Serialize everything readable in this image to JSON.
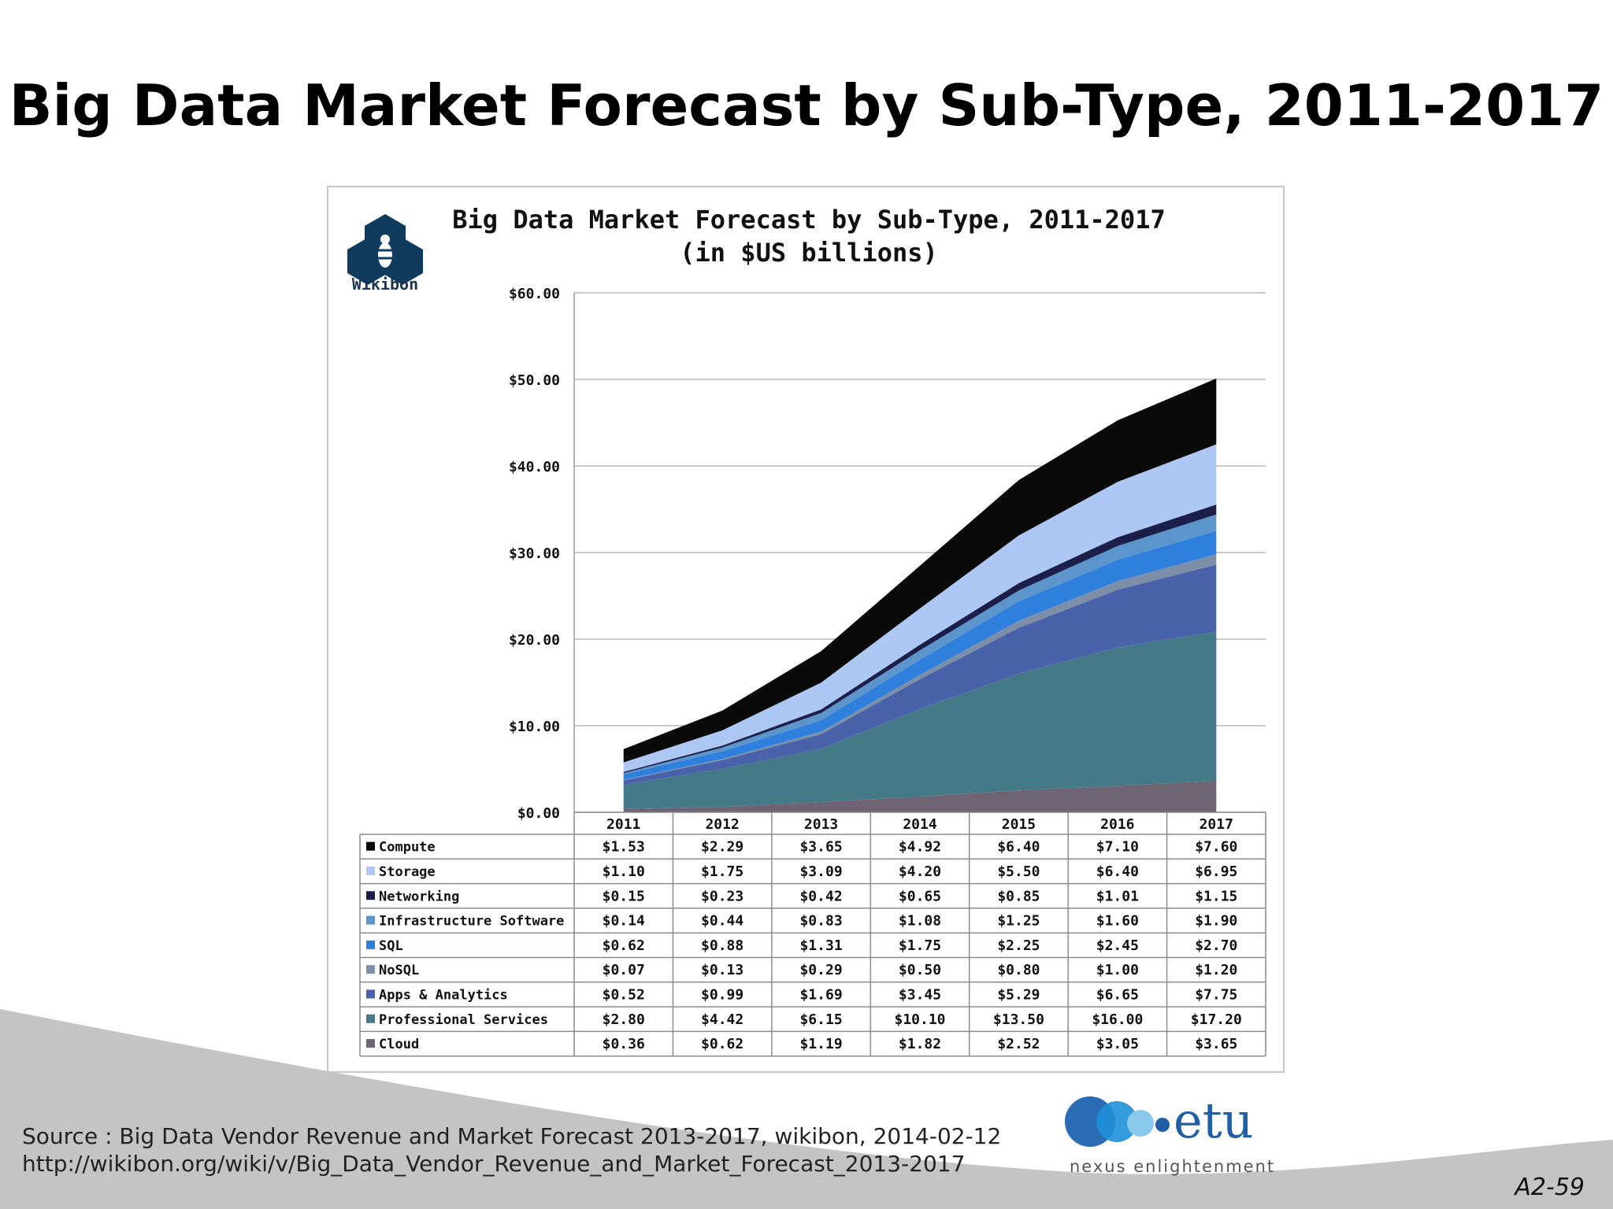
{
  "slide": {
    "title": "Big Data Market Forecast by Sub-Type, 2011-2017",
    "source_line1": "Source : Big Data Vendor Revenue and Market Forecast 2013-2017, wikibon, 2014-02-12",
    "source_line2": "http://wikibon.org/wiki/v/Big_Data_Vendor_Revenue_and_Market_Forecast_2013-2017",
    "slide_number": "A2-59",
    "logo_wikibon": "Wikibon",
    "logo_etu": "etu",
    "logo_etu_tagline": "nexus enlightenment",
    "colors": {
      "swoosh": "#c4c4c4",
      "etu_blue": "#1f5fa6"
    }
  },
  "chart_data": {
    "type": "area",
    "stacked": true,
    "title": "Big Data Market Forecast by Sub-Type, 2011-2017",
    "subtitle": "(in $US billions)",
    "categories": [
      "2011",
      "2012",
      "2013",
      "2014",
      "2015",
      "2016",
      "2017"
    ],
    "ylim": [
      0,
      60
    ],
    "yticks": [
      0,
      10,
      20,
      30,
      40,
      50,
      60
    ],
    "ytick_labels": [
      "$0.00",
      "$10.00",
      "$20.00",
      "$30.00",
      "$40.00",
      "$50.00",
      "$60.00"
    ],
    "grid": true,
    "series": [
      {
        "name": "Compute",
        "color": "#0a0a0a",
        "values": [
          1.53,
          2.29,
          3.65,
          4.92,
          6.4,
          7.1,
          7.6
        ],
        "labels": [
          "$1.53",
          "$2.29",
          "$3.65",
          "$4.92",
          "$6.40",
          "$7.10",
          "$7.60"
        ]
      },
      {
        "name": "Storage",
        "color": "#adc8f5",
        "values": [
          1.1,
          1.75,
          3.09,
          4.2,
          5.5,
          6.4,
          6.95
        ],
        "labels": [
          "$1.10",
          "$1.75",
          "$3.09",
          "$4.20",
          "$5.50",
          "$6.40",
          "$6.95"
        ]
      },
      {
        "name": "Networking",
        "color": "#1c1f4a",
        "values": [
          0.15,
          0.23,
          0.42,
          0.65,
          0.85,
          1.01,
          1.15
        ],
        "labels": [
          "$0.15",
          "$0.23",
          "$0.42",
          "$0.65",
          "$0.85",
          "$1.01",
          "$1.15"
        ]
      },
      {
        "name": "Infrastructure Software",
        "color": "#5b95cc",
        "values": [
          0.14,
          0.44,
          0.83,
          1.08,
          1.25,
          1.6,
          1.9
        ],
        "labels": [
          "$0.14",
          "$0.44",
          "$0.83",
          "$1.08",
          "$1.25",
          "$1.60",
          "$1.90"
        ]
      },
      {
        "name": "SQL",
        "color": "#2f7fdc",
        "values": [
          0.62,
          0.88,
          1.31,
          1.75,
          2.25,
          2.45,
          2.7
        ],
        "labels": [
          "$0.62",
          "$0.88",
          "$1.31",
          "$1.75",
          "$2.25",
          "$2.45",
          "$2.70"
        ]
      },
      {
        "name": "NoSQL",
        "color": "#7d8fa8",
        "values": [
          0.07,
          0.13,
          0.29,
          0.5,
          0.8,
          1.0,
          1.2
        ],
        "labels": [
          "$0.07",
          "$0.13",
          "$0.29",
          "$0.50",
          "$0.80",
          "$1.00",
          "$1.20"
        ]
      },
      {
        "name": "Apps & Analytics",
        "color": "#4a62aa",
        "values": [
          0.52,
          0.99,
          1.69,
          3.45,
          5.29,
          6.65,
          7.75
        ],
        "labels": [
          "$0.52",
          "$0.99",
          "$1.69",
          "$3.45",
          "$5.29",
          "$6.65",
          "$7.75"
        ]
      },
      {
        "name": "Professional Services",
        "color": "#447a87",
        "values": [
          2.8,
          4.42,
          6.15,
          10.1,
          13.5,
          16.0,
          17.2
        ],
        "labels": [
          "$2.80",
          "$4.42",
          "$6.15",
          "$10.10",
          "$13.50",
          "$16.00",
          "$17.20"
        ]
      },
      {
        "name": "Cloud",
        "color": "#6f6474",
        "values": [
          0.36,
          0.62,
          1.19,
          1.82,
          2.52,
          3.05,
          3.65
        ],
        "labels": [
          "$0.36",
          "$0.62",
          "$1.19",
          "$1.82",
          "$2.52",
          "$3.05",
          "$3.65"
        ]
      }
    ]
  }
}
